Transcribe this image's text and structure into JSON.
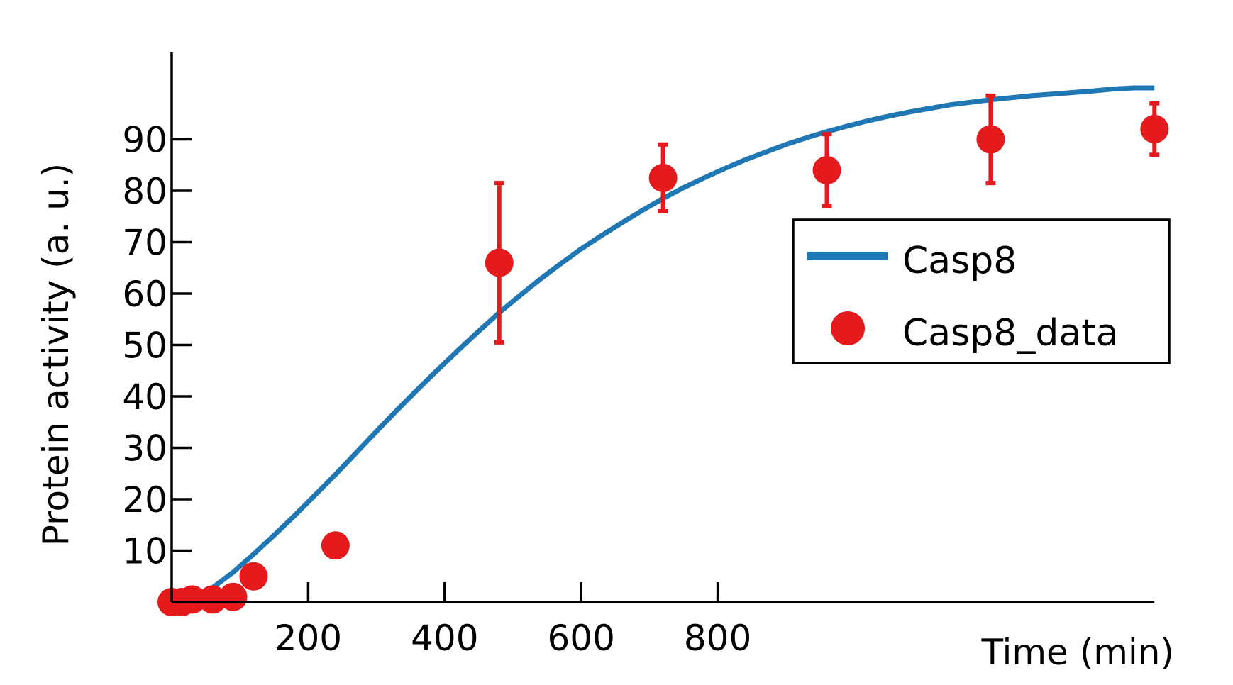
{
  "chart_data": {
    "type": "line",
    "xlabel": "Time (min)",
    "ylabel": "Protein activity (a. u.)",
    "xlim": [
      0,
      1440
    ],
    "ylim": [
      0,
      100
    ],
    "xticks": [
      200,
      400,
      600,
      800
    ],
    "yticks": [
      10,
      20,
      30,
      40,
      50,
      60,
      70,
      80,
      90
    ],
    "legend": "right",
    "series": [
      {
        "name": "Casp8",
        "kind": "line",
        "color": "#1f77b4",
        "x": [
          0,
          30,
          60,
          90,
          120,
          150,
          180,
          210,
          240,
          270,
          300,
          330,
          360,
          390,
          420,
          450,
          480,
          510,
          540,
          570,
          600,
          630,
          660,
          690,
          720,
          750,
          780,
          810,
          840,
          870,
          900,
          930,
          960,
          990,
          1020,
          1050,
          1080,
          1110,
          1140,
          1170,
          1200,
          1230,
          1260,
          1290,
          1320,
          1350,
          1380,
          1410,
          1440
        ],
        "y": [
          0,
          1.0,
          2.8,
          5.8,
          9.3,
          13.0,
          16.8,
          20.8,
          24.8,
          29.0,
          33.2,
          37.3,
          41.3,
          45.2,
          49.0,
          52.7,
          56.3,
          59.6,
          62.8,
          65.8,
          68.7,
          71.3,
          73.8,
          76.2,
          78.5,
          80.6,
          82.5,
          84.3,
          86.0,
          87.5,
          89.0,
          90.3,
          91.5,
          92.6,
          93.6,
          94.5,
          95.3,
          96.0,
          96.7,
          97.2,
          97.7,
          98.1,
          98.5,
          98.8,
          99.1,
          99.4,
          99.8,
          100.0,
          100.0
        ]
      },
      {
        "name": "Casp8_data",
        "kind": "scatter",
        "color": "#e41a1c",
        "x": [
          0,
          15,
          30,
          60,
          90,
          120,
          240,
          480,
          720,
          960,
          1200,
          1440
        ],
        "y": [
          0,
          0,
          0.5,
          0.5,
          1.0,
          5.0,
          11.0,
          66.0,
          82.5,
          84.0,
          90.0,
          92.0
        ],
        "err": [
          0,
          0,
          0,
          0,
          0,
          1.5,
          0,
          15.5,
          6.5,
          7.0,
          8.5,
          5.0
        ]
      }
    ]
  }
}
